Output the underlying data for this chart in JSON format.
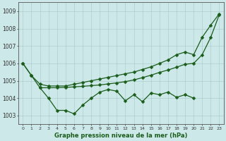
{
  "bg_color": "#cce8e8",
  "line_color": "#1a5c1a",
  "xlabel": "Graphe pression niveau de la mer (hPa)",
  "yticks": [
    1003,
    1004,
    1005,
    1006,
    1007,
    1008,
    1009
  ],
  "xticks": [
    0,
    1,
    2,
    3,
    4,
    5,
    6,
    7,
    8,
    9,
    10,
    11,
    12,
    13,
    14,
    15,
    16,
    17,
    18,
    19,
    20,
    21,
    22,
    23
  ],
  "ylim": [
    1002.5,
    1009.5
  ],
  "xlim": [
    -0.5,
    23.5
  ],
  "line_steep_up_x": [
    0,
    1,
    2,
    3,
    4,
    5,
    6,
    7,
    8,
    9,
    10,
    11,
    12,
    13,
    14,
    15,
    16,
    17,
    18,
    19,
    20,
    21,
    22,
    23
  ],
  "line_steep_up_y": [
    1006.0,
    1005.3,
    1004.8,
    1004.7,
    1004.7,
    1004.7,
    1004.8,
    1004.9,
    1005.0,
    1005.1,
    1005.2,
    1005.3,
    1005.4,
    1005.5,
    1005.65,
    1005.8,
    1006.0,
    1006.2,
    1006.5,
    1006.65,
    1006.5,
    1007.5,
    1008.2,
    1008.85
  ],
  "line_zigzag_x": [
    0,
    1,
    2,
    3,
    4,
    5,
    6,
    7,
    8,
    9,
    10,
    11,
    12,
    13,
    14,
    15,
    16,
    17,
    18,
    19,
    20
  ],
  "line_zigzag_y": [
    1006.0,
    1005.3,
    1004.6,
    1004.0,
    1003.3,
    1003.3,
    1003.1,
    1003.6,
    1004.0,
    1004.35,
    1004.5,
    1004.4,
    1003.85,
    1004.2,
    1003.8,
    1004.3,
    1004.2,
    1004.35,
    1004.05,
    1004.2,
    1004.0
  ],
  "line_mid_x": [
    2,
    3,
    4,
    5,
    6,
    7,
    8,
    9,
    10,
    11,
    12,
    13,
    14,
    15,
    16,
    17,
    18,
    19,
    20,
    21,
    22,
    23
  ],
  "line_mid_y": [
    1004.6,
    1004.6,
    1004.6,
    1004.62,
    1004.65,
    1004.68,
    1004.72,
    1004.76,
    1004.82,
    1004.88,
    1004.95,
    1005.05,
    1005.18,
    1005.32,
    1005.48,
    1005.62,
    1005.78,
    1005.95,
    1006.0,
    1006.5,
    1007.5,
    1008.8
  ]
}
